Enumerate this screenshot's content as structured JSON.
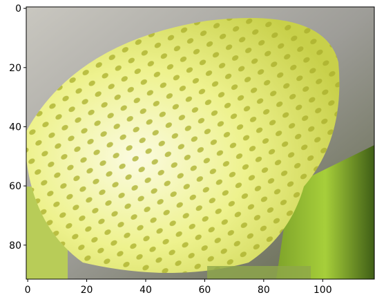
{
  "chart_data": {
    "type": "image",
    "xlim": [
      -0.5,
      117.5
    ],
    "xticks": [
      0,
      20,
      40,
      60,
      80,
      100
    ],
    "ylim": [
      91.5,
      -0.5
    ],
    "yticks": [
      0,
      20,
      40,
      60,
      80
    ]
  }
}
